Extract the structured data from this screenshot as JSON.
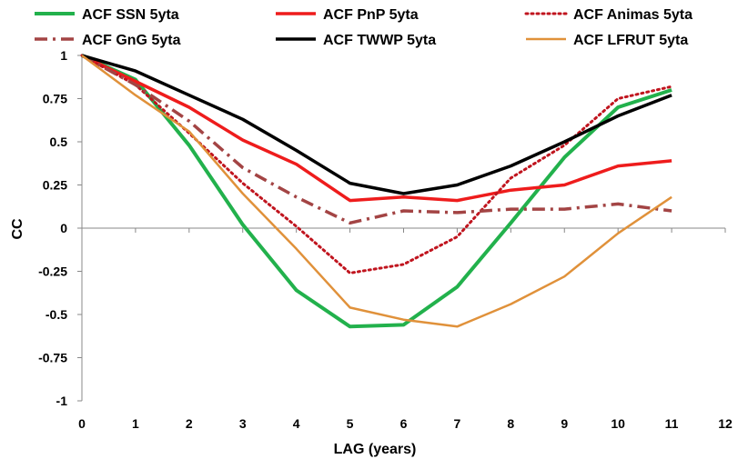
{
  "chart_data": {
    "type": "line",
    "title": "",
    "xlabel": "LAG (years)",
    "ylabel": "CC",
    "xlim": [
      0,
      12
    ],
    "ylim": [
      -1,
      1
    ],
    "xticks": [
      0,
      1,
      2,
      3,
      4,
      5,
      6,
      7,
      8,
      9,
      10,
      11,
      12
    ],
    "yticks": [
      1,
      0.75,
      0.5,
      0.25,
      0,
      -0.25,
      -0.5,
      -0.75,
      -1
    ],
    "ytick_labels": [
      "1",
      "0.75",
      "0.5",
      "0.25",
      "0",
      "-0.25",
      "-0.5",
      "-0.75",
      "-1"
    ],
    "grid": false,
    "legend_position": "top",
    "x": [
      0,
      1,
      2,
      3,
      4,
      5,
      6,
      7,
      8,
      9,
      10,
      11
    ],
    "series": [
      {
        "name": "ACF SSN 5yta",
        "color": "#22b14c",
        "dash": "solid",
        "width": 4,
        "values": [
          1,
          0.86,
          0.48,
          0.02,
          -0.36,
          -0.57,
          -0.56,
          -0.34,
          0.03,
          0.41,
          0.7,
          0.8
        ]
      },
      {
        "name": "ACF PnP 5yta",
        "color": "#ee1c1c",
        "dash": "solid",
        "width": 3.5,
        "values": [
          1,
          0.85,
          0.7,
          0.51,
          0.37,
          0.16,
          0.18,
          0.16,
          0.22,
          0.25,
          0.36,
          0.39
        ]
      },
      {
        "name": "ACF Animas 5yta",
        "color": "#c0141e",
        "dash": "dot",
        "width": 3,
        "values": [
          1,
          0.83,
          0.55,
          0.26,
          0.01,
          -0.26,
          -0.21,
          -0.05,
          0.29,
          0.48,
          0.75,
          0.82
        ]
      },
      {
        "name": "ACF GnG 5yta",
        "color": "#a34444",
        "dash": "dashdot",
        "width": 3.5,
        "values": [
          1,
          0.83,
          0.62,
          0.35,
          0.18,
          0.03,
          0.1,
          0.09,
          0.11,
          0.11,
          0.14,
          0.1
        ]
      },
      {
        "name": "ACF TWWP 5yta",
        "color": "#000000",
        "dash": "solid",
        "width": 3.5,
        "values": [
          1,
          0.91,
          0.77,
          0.63,
          0.45,
          0.26,
          0.2,
          0.25,
          0.36,
          0.5,
          0.65,
          0.77
        ]
      },
      {
        "name": "ACF LFRUT 5yta",
        "color": "#e0913a",
        "dash": "solid",
        "width": 2.5,
        "values": [
          1,
          0.77,
          0.56,
          0.2,
          -0.12,
          -0.46,
          -0.53,
          -0.57,
          -0.44,
          -0.28,
          -0.03,
          0.18
        ]
      }
    ]
  }
}
